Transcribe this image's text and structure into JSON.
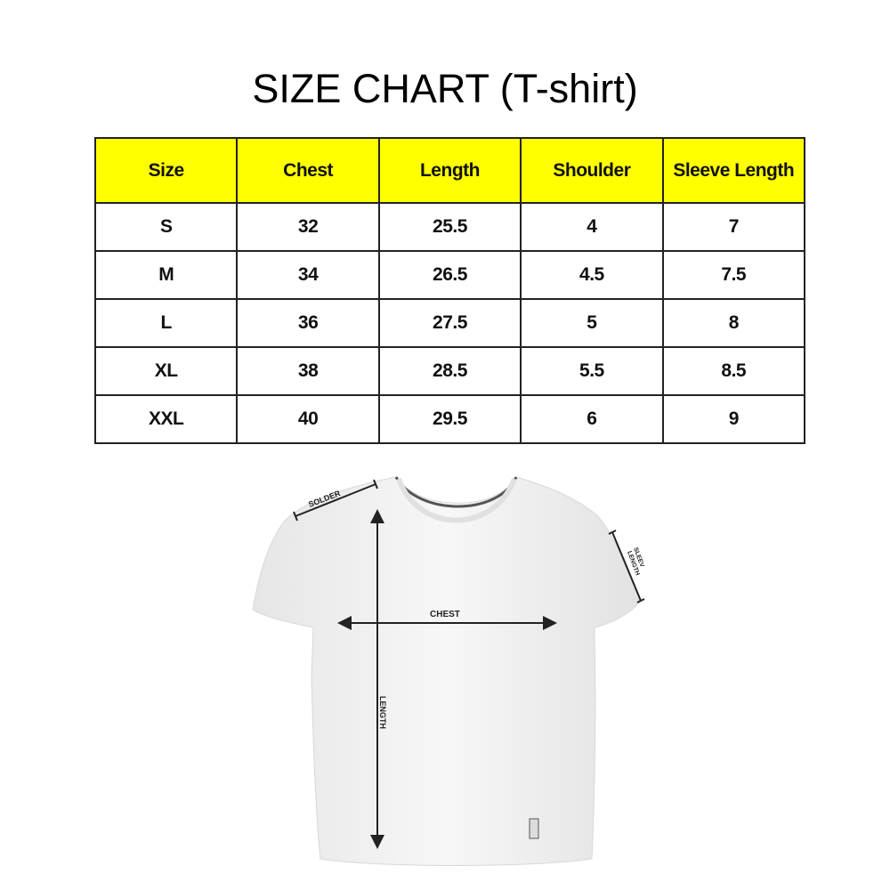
{
  "title": "SIZE CHART (T-shirt)",
  "table": {
    "headers": [
      "Size",
      "Chest",
      "Length",
      "Shoulder",
      "Sleeve Length"
    ],
    "rows": [
      [
        "S",
        "32",
        "25.5",
        "4",
        "7"
      ],
      [
        "M",
        "34",
        "26.5",
        "4.5",
        "7.5"
      ],
      [
        "L",
        "36",
        "27.5",
        "5",
        "8"
      ],
      [
        "XL",
        "38",
        "28.5",
        "5.5",
        "8.5"
      ],
      [
        "XXL",
        "40",
        "29.5",
        "6",
        "9"
      ]
    ],
    "header_color": "#ffff00"
  },
  "diagram": {
    "shoulder_label": "SOLDER",
    "chest_label": "CHEST",
    "length_label": "LENGTH",
    "sleeve_label_1": "SLEEV",
    "sleeve_label_2": "LENGTH"
  }
}
